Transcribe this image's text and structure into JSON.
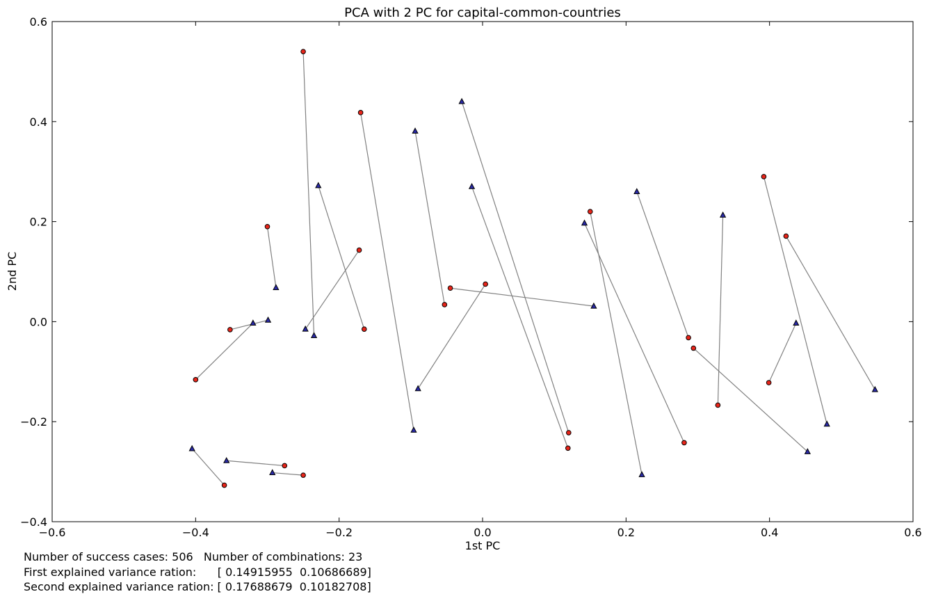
{
  "chart_data": {
    "type": "scatter",
    "title": "PCA with 2 PC for capital-common-countries",
    "xlabel": "1st PC",
    "ylabel": "2nd PC",
    "xlim": [
      -0.6,
      0.6
    ],
    "ylim": [
      -0.4,
      0.6
    ],
    "xticks": [
      -0.6,
      -0.4,
      -0.2,
      0.0,
      0.2,
      0.4,
      0.6
    ],
    "yticks": [
      -0.4,
      -0.2,
      0.0,
      0.2,
      0.4,
      0.6
    ],
    "xtick_labels": [
      "−0.6",
      "−0.4",
      "−0.2",
      "0.0",
      "0.2",
      "0.4",
      "0.6"
    ],
    "ytick_labels": [
      "−0.4",
      "−0.2",
      "0.0",
      "0.2",
      "0.4",
      "0.6"
    ],
    "grid": false,
    "colors": {
      "circle_fill": "#e8251a",
      "triangle_fill": "#2a2aa8",
      "marker_edge": "#000000",
      "link_line": "#808080"
    },
    "series": [
      {
        "marker": "circle",
        "points": [
          [
            -0.25,
            0.54
          ],
          [
            -0.17,
            0.418
          ],
          [
            -0.3,
            0.19
          ],
          [
            -0.172,
            0.143
          ],
          [
            -0.352,
            -0.016
          ],
          [
            -0.4,
            -0.116
          ],
          [
            -0.165,
            -0.015
          ],
          [
            -0.053,
            0.034
          ],
          [
            -0.045,
            0.067
          ],
          [
            0.004,
            0.075
          ],
          [
            0.15,
            0.22
          ],
          [
            0.12,
            -0.222
          ],
          [
            0.119,
            -0.253
          ],
          [
            0.287,
            -0.032
          ],
          [
            0.294,
            -0.053
          ],
          [
            0.328,
            -0.167
          ],
          [
            0.281,
            -0.242
          ],
          [
            0.392,
            0.29
          ],
          [
            0.423,
            0.171
          ],
          [
            0.399,
            -0.122
          ],
          [
            -0.276,
            -0.288
          ],
          [
            -0.25,
            -0.307
          ],
          [
            -0.36,
            -0.327
          ]
        ]
      },
      {
        "marker": "triangle",
        "points": [
          [
            -0.235,
            -0.028
          ],
          [
            -0.029,
            0.44
          ],
          [
            -0.229,
            0.272
          ],
          [
            -0.288,
            0.068
          ],
          [
            -0.247,
            -0.015
          ],
          [
            -0.299,
            0.003
          ],
          [
            -0.32,
            -0.003
          ],
          [
            -0.096,
            -0.217
          ],
          [
            -0.094,
            0.381
          ],
          [
            -0.09,
            -0.134
          ],
          [
            0.155,
            0.031
          ],
          [
            0.142,
            0.197
          ],
          [
            -0.015,
            0.27
          ],
          [
            0.215,
            0.26
          ],
          [
            0.335,
            0.213
          ],
          [
            0.222,
            -0.306
          ],
          [
            0.48,
            -0.205
          ],
          [
            0.547,
            -0.136
          ],
          [
            0.437,
            -0.003
          ],
          [
            0.453,
            -0.26
          ],
          [
            -0.357,
            -0.278
          ],
          [
            -0.293,
            -0.302
          ],
          [
            -0.405,
            -0.254
          ]
        ]
      }
    ],
    "links": [
      [
        [
          -0.25,
          0.54
        ],
        [
          -0.235,
          -0.028
        ]
      ],
      [
        [
          -0.17,
          0.418
        ],
        [
          -0.096,
          -0.217
        ]
      ],
      [
        [
          -0.3,
          0.19
        ],
        [
          -0.288,
          0.068
        ]
      ],
      [
        [
          -0.172,
          0.143
        ],
        [
          -0.247,
          -0.015
        ]
      ],
      [
        [
          -0.352,
          -0.016
        ],
        [
          -0.299,
          0.003
        ]
      ],
      [
        [
          -0.4,
          -0.116
        ],
        [
          -0.32,
          -0.003
        ]
      ],
      [
        [
          -0.165,
          -0.015
        ],
        [
          -0.229,
          0.272
        ]
      ],
      [
        [
          -0.053,
          0.034
        ],
        [
          -0.094,
          0.381
        ]
      ],
      [
        [
          -0.045,
          0.067
        ],
        [
          0.155,
          0.031
        ]
      ],
      [
        [
          0.004,
          0.075
        ],
        [
          -0.09,
          -0.134
        ]
      ],
      [
        [
          0.15,
          0.22
        ],
        [
          0.222,
          -0.306
        ]
      ],
      [
        [
          0.12,
          -0.222
        ],
        [
          -0.029,
          0.44
        ]
      ],
      [
        [
          0.119,
          -0.253
        ],
        [
          -0.015,
          0.27
        ]
      ],
      [
        [
          0.287,
          -0.032
        ],
        [
          0.215,
          0.26
        ]
      ],
      [
        [
          0.294,
          -0.053
        ],
        [
          0.453,
          -0.26
        ]
      ],
      [
        [
          0.328,
          -0.167
        ],
        [
          0.335,
          0.213
        ]
      ],
      [
        [
          0.281,
          -0.242
        ],
        [
          0.142,
          0.197
        ]
      ],
      [
        [
          0.392,
          0.29
        ],
        [
          0.48,
          -0.205
        ]
      ],
      [
        [
          0.423,
          0.171
        ],
        [
          0.547,
          -0.136
        ]
      ],
      [
        [
          0.399,
          -0.122
        ],
        [
          0.437,
          -0.003
        ]
      ],
      [
        [
          -0.276,
          -0.288
        ],
        [
          -0.357,
          -0.278
        ]
      ],
      [
        [
          -0.25,
          -0.307
        ],
        [
          -0.293,
          -0.302
        ]
      ],
      [
        [
          -0.36,
          -0.327
        ],
        [
          -0.405,
          -0.254
        ]
      ]
    ]
  },
  "footer": {
    "line1": "Number of success cases: 506   Number of combinations: 23",
    "line2": "First explained variance ration:      [ 0.14915955  0.10686689]",
    "line3": "Second explained variance ration: [ 0.17688679  0.10182708]"
  }
}
